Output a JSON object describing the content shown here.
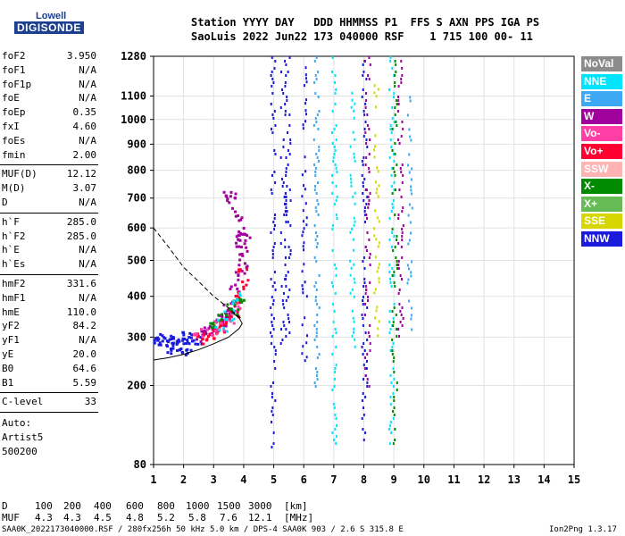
{
  "logo": {
    "top": "Lowell",
    "bottom": "DIGISONDE"
  },
  "header": {
    "line1": "Station YYYY DAY   DDD HHMMSS P1  FFS S AXN PPS IGA PS",
    "line2": "SaoLuis 2022 Jun22 173 040000 RSF    1 715 100 00- 11"
  },
  "params": {
    "group1": [
      {
        "name": "foF2",
        "value": "3.950"
      },
      {
        "name": "foF1",
        "value": "N/A"
      },
      {
        "name": "foF1p",
        "value": "N/A"
      },
      {
        "name": "foE",
        "value": "N/A"
      },
      {
        "name": "foEp",
        "value": "0.35"
      },
      {
        "name": "fxI",
        "value": "4.60"
      },
      {
        "name": "foEs",
        "value": "N/A"
      },
      {
        "name": "fmin",
        "value": "2.00"
      }
    ],
    "group2": [
      {
        "name": "MUF(D)",
        "value": "12.12"
      },
      {
        "name": "M(D)",
        "value": "3.07"
      },
      {
        "name": "D",
        "value": "N/A"
      }
    ],
    "group3": [
      {
        "name": "h`F",
        "value": "285.0"
      },
      {
        "name": "h`F2",
        "value": "285.0"
      },
      {
        "name": "h`E",
        "value": "N/A"
      },
      {
        "name": "h`Es",
        "value": "N/A"
      }
    ],
    "group4": [
      {
        "name": "hmF2",
        "value": "331.6"
      },
      {
        "name": "hmF1",
        "value": "N/A"
      },
      {
        "name": "hmE",
        "value": "110.0"
      },
      {
        "name": "yF2",
        "value": "84.2"
      },
      {
        "name": "yF1",
        "value": "N/A"
      },
      {
        "name": "yE",
        "value": "20.0"
      },
      {
        "name": "B0",
        "value": "64.6"
      },
      {
        "name": "B1",
        "value": "5.59"
      }
    ],
    "group5": [
      {
        "name": "C-level",
        "value": "33"
      }
    ],
    "auto": [
      "Auto:",
      "Artist5",
      "500200"
    ]
  },
  "legend": [
    {
      "label": "NoVal",
      "color": "#8c8c8c"
    },
    {
      "label": "NNE",
      "color": "#00e5ff"
    },
    {
      "label": "E",
      "color": "#3da9f5"
    },
    {
      "label": "W",
      "color": "#a0009c"
    },
    {
      "label": "Vo-",
      "color": "#ff3fa6"
    },
    {
      "label": "Vo+",
      "color": "#ff0030"
    },
    {
      "label": "SSW",
      "color": "#ffb3b3"
    },
    {
      "label": "X-",
      "color": "#008a00"
    },
    {
      "label": "X+",
      "color": "#66bb55"
    },
    {
      "label": "SSE",
      "color": "#d6d600"
    },
    {
      "label": "NNW",
      "color": "#1a1adc"
    }
  ],
  "muf_table": {
    "d_label": "D",
    "muf_label": "MUF",
    "d_values": [
      "100",
      "200",
      "400",
      "600",
      "800",
      "1000",
      "1500",
      "3000"
    ],
    "d_unit": "[km]",
    "muf_values": [
      "4.3",
      "4.3",
      "4.5",
      "4.8",
      "5.2",
      "5.8",
      "7.6",
      "12.1"
    ],
    "muf_unit": "[MHz]"
  },
  "footer": {
    "left": "SAA0K_2022173040000.RSF / 280fx256h 50 kHz 5.0 km / DPS-4 SAA0K 903 / 2.6 S 315.8 E",
    "right": "Ion2Png 1.3.17"
  },
  "chart_data": {
    "type": "scatter",
    "title": "",
    "xlabel": "",
    "ylabel": "",
    "x_ticks": [
      1,
      2,
      3,
      4,
      5,
      6,
      7,
      8,
      9,
      10,
      11,
      12,
      13,
      14,
      15
    ],
    "y_ticks": [
      80,
      200,
      300,
      400,
      500,
      600,
      700,
      800,
      900,
      1000,
      1100,
      1280
    ],
    "xlim": [
      1,
      15
    ],
    "ylim": [
      80,
      1280
    ],
    "y_scale": "sqrt",
    "grid": true,
    "legend_position": "right",
    "series": [
      {
        "type": "points",
        "color": "#a0009c",
        "points": [
          [
            3.0,
            320
          ],
          [
            3.2,
            330
          ],
          [
            3.4,
            350
          ],
          [
            3.6,
            380
          ],
          [
            3.7,
            420
          ],
          [
            3.8,
            460
          ],
          [
            3.9,
            500
          ],
          [
            4.0,
            540
          ],
          [
            3.5,
            370
          ],
          [
            3.3,
            340
          ],
          [
            2.8,
            310
          ],
          [
            2.6,
            305
          ],
          [
            3.9,
            560
          ],
          [
            4.0,
            580
          ],
          [
            3.8,
            600
          ],
          [
            3.7,
            640
          ],
          [
            3.6,
            690
          ],
          [
            3.5,
            720
          ]
        ]
      },
      {
        "type": "points",
        "color": "#1a1adc",
        "points": [
          [
            1.8,
            290
          ],
          [
            2.0,
            300
          ],
          [
            2.2,
            295
          ],
          [
            2.4,
            300
          ],
          [
            1.7,
            280
          ],
          [
            1.9,
            270
          ],
          [
            2.1,
            285
          ],
          [
            1.6,
            290
          ],
          [
            1.1,
            290
          ],
          [
            1.2,
            295
          ],
          [
            1.4,
            280
          ],
          [
            1.5,
            295
          ]
        ]
      },
      {
        "type": "points",
        "color": "#ff0030",
        "points": [
          [
            2.6,
            300
          ],
          [
            2.8,
            305
          ],
          [
            3.0,
            310
          ],
          [
            3.2,
            320
          ],
          [
            3.4,
            340
          ],
          [
            3.6,
            360
          ],
          [
            3.8,
            390
          ],
          [
            3.9,
            420
          ],
          [
            4.0,
            460
          ]
        ]
      },
      {
        "type": "points",
        "color": "#ff3fa6",
        "points": [
          [
            2.5,
            310
          ],
          [
            2.9,
            315
          ],
          [
            3.1,
            330
          ],
          [
            3.5,
            350
          ],
          [
            3.7,
            380
          ]
        ]
      },
      {
        "type": "points",
        "color": "#008a00",
        "points": [
          [
            3.0,
            325
          ],
          [
            3.3,
            345
          ],
          [
            3.6,
            370
          ],
          [
            3.8,
            400
          ]
        ]
      },
      {
        "type": "points",
        "color": "#00e5ff",
        "points": [
          [
            3.2,
            330
          ],
          [
            3.5,
            355
          ],
          [
            3.75,
            395
          ]
        ]
      },
      {
        "type": "vertical-band",
        "color": "#1a1adc",
        "x": 4.95,
        "from": 100,
        "to": 1280
      },
      {
        "type": "vertical-band",
        "color": "#1a1adc",
        "x": 5.3,
        "from": 280,
        "to": 1280
      },
      {
        "type": "vertical-band",
        "color": "#1a1adc",
        "x": 5.45,
        "from": 300,
        "to": 1280
      },
      {
        "type": "vertical-band",
        "color": "#1a1adc",
        "x": 6.0,
        "from": 250,
        "to": 1250
      },
      {
        "type": "vertical-band",
        "color": "#3da9f5",
        "x": 6.4,
        "from": 200,
        "to": 1280
      },
      {
        "type": "vertical-band",
        "color": "#00e5ff",
        "x": 7.0,
        "from": 100,
        "to": 1280
      },
      {
        "type": "vertical-band",
        "color": "#00e5ff",
        "x": 7.6,
        "from": 250,
        "to": 1150
      },
      {
        "type": "vertical-band",
        "color": "#1a1adc",
        "x": 8.0,
        "from": 100,
        "to": 1280
      },
      {
        "type": "vertical-band",
        "color": "#a0009c",
        "x": 8.1,
        "from": 200,
        "to": 1280
      },
      {
        "type": "vertical-band",
        "color": "#d6d600",
        "x": 8.4,
        "from": 300,
        "to": 1200
      },
      {
        "type": "vertical-band",
        "color": "#00e5ff",
        "x": 8.9,
        "from": 100,
        "to": 1280
      },
      {
        "type": "vertical-band",
        "color": "#008a00",
        "x": 9.0,
        "from": 90,
        "to": 1280
      },
      {
        "type": "vertical-band",
        "color": "#a0009c",
        "x": 9.2,
        "from": 300,
        "to": 1280
      },
      {
        "type": "vertical-band",
        "color": "#3da9f5",
        "x": 9.5,
        "from": 300,
        "to": 1100
      }
    ],
    "profile_curve": [
      [
        1.0,
        250
      ],
      [
        1.5,
        255
      ],
      [
        2.0,
        262
      ],
      [
        2.5,
        272
      ],
      [
        3.0,
        285
      ],
      [
        3.5,
        300
      ],
      [
        3.85,
        320
      ],
      [
        3.95,
        331.6
      ],
      [
        3.85,
        345
      ],
      [
        3.6,
        360
      ]
    ],
    "dashed_curve": [
      [
        1.0,
        600
      ],
      [
        1.5,
        540
      ],
      [
        2.0,
        480
      ],
      [
        2.5,
        440
      ],
      [
        3.0,
        400
      ],
      [
        3.5,
        370
      ],
      [
        3.9,
        345
      ]
    ]
  }
}
